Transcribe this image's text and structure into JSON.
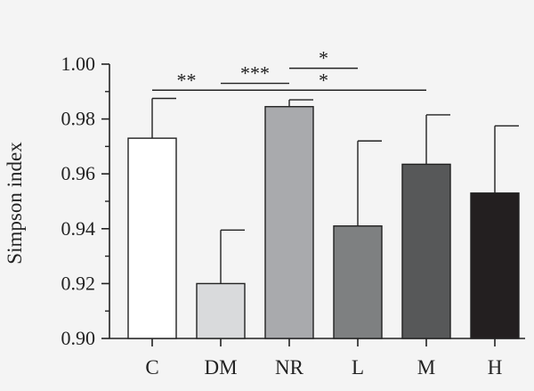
{
  "chart_data": {
    "type": "bar",
    "title": "",
    "xlabel": "",
    "ylabel": "Simpson index",
    "ylim": [
      0.9,
      1.0
    ],
    "y_ticks": [
      0.9,
      0.92,
      0.94,
      0.96,
      0.98,
      1.0
    ],
    "y_tick_labels": [
      "0.90",
      "0.92",
      "0.94",
      "0.96",
      "0.98",
      "1.00"
    ],
    "grid": false,
    "categories": [
      "C",
      "DM",
      "NR",
      "L",
      "M",
      "H"
    ],
    "values": [
      0.973,
      0.92,
      0.9845,
      0.941,
      0.9635,
      0.953
    ],
    "error_upper": [
      0.9875,
      0.9395,
      0.987,
      0.972,
      0.9815,
      0.9775
    ],
    "bar_colors": [
      "#ffffff",
      "#d9dadc",
      "#a9aaad",
      "#7e8081",
      "#575859",
      "#231f20"
    ],
    "significance": [
      {
        "from": "C",
        "to": "DM",
        "label": "**",
        "y": 0.9905
      },
      {
        "from": "DM",
        "to": "NR",
        "label": "***",
        "y": 0.993
      },
      {
        "from": "NR",
        "to": "L",
        "label": "*",
        "y": 0.9985
      },
      {
        "from": "DM",
        "to": "M",
        "label": "*",
        "y": 0.9905
      }
    ]
  }
}
